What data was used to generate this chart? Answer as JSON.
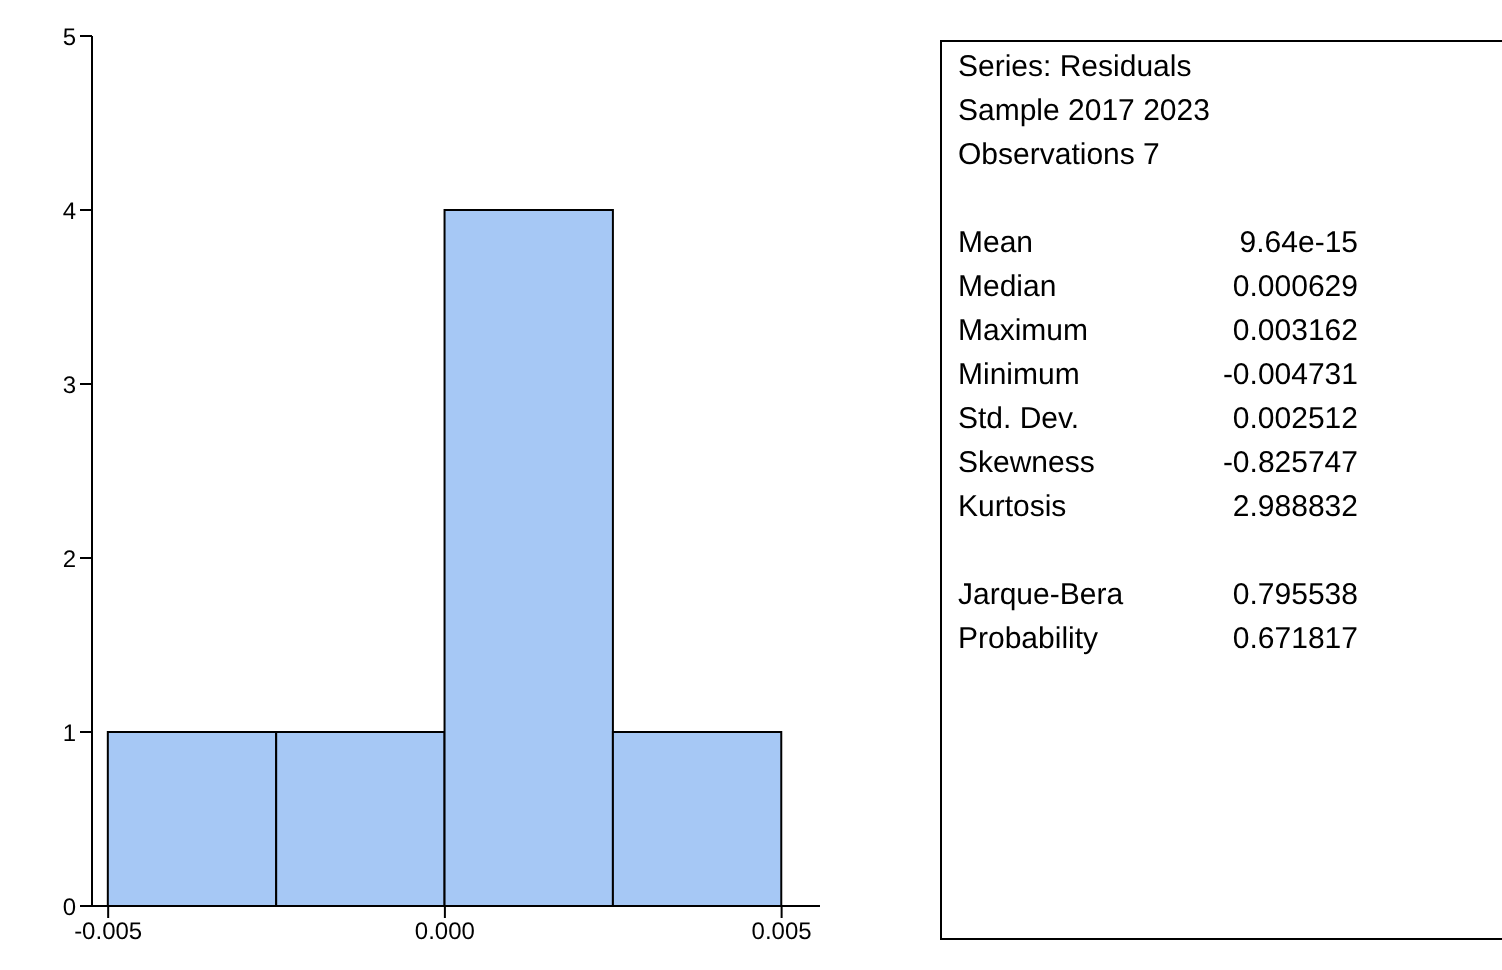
{
  "chart_data": [
    {
      "type": "histogram",
      "bins": [
        -0.005,
        -0.0025,
        0,
        0.0025,
        0.005
      ],
      "values": [
        1,
        1,
        4,
        1
      ],
      "color": "#a6c8f5",
      "xlim": [
        -0.00524,
        0.00557
      ],
      "xticks": [
        -0.005,
        {
          "value": 0,
          "label": "0.000"
        },
        0.005
      ],
      "ylim": [
        0,
        5
      ],
      "yticks": [
        0,
        1,
        2,
        3,
        4,
        5
      ]
    },
    {
      "type": "other",
      "annotations": [
        "Series: Residuals",
        "Sample 2017 2023",
        "Observations 7"
      ],
      "categories": [
        "Mean",
        "Median",
        "Maximum",
        "Minimum",
        "Std. Dev.",
        "Skewness",
        "Kurtosis",
        "Jarque-Bera",
        "Probability"
      ],
      "value_labels": [
        "9.64e-15",
        "0.000629",
        "0.003162",
        "-0.004731",
        "0.002512",
        "-0.825747",
        "2.988832",
        "0.795538",
        "0.671817"
      ]
    }
  ]
}
